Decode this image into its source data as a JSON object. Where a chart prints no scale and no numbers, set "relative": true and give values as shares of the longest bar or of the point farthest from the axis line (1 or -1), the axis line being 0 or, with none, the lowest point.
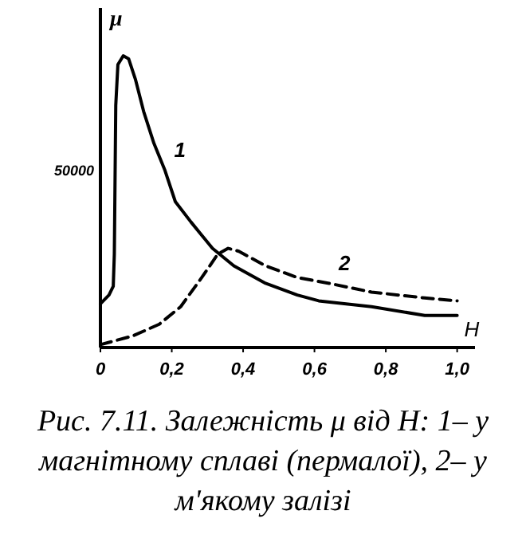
{
  "chart_data": {
    "type": "line",
    "title": "Рис. 7.11. Залежність μ від H: 1– у магнітному сплаві (пермалої), 2– у м'якому залізі",
    "xlabel": "H",
    "ylabel": "μ",
    "relative": true,
    "annotations": [
      "50000"
    ],
    "xlim": [
      0,
      1.05
    ],
    "xticks": [
      0,
      {
        "value": 0.2,
        "label": "0,2"
      },
      {
        "value": 0.4,
        "label": "0,4"
      },
      {
        "value": 0.6,
        "label": "0,6"
      },
      {
        "value": 0.8,
        "label": "0,8"
      },
      {
        "value": 1.0,
        "label": "1,0"
      }
    ],
    "grid": false,
    "legend": false,
    "series": [
      {
        "name": "1",
        "color": "#000000",
        "line_style": "solid",
        "x": [
          0,
          0.024,
          0.036,
          0.039,
          0.043,
          0.049,
          0.064,
          0.079,
          0.098,
          0.121,
          0.15,
          0.18,
          0.21,
          0.254,
          0.314,
          0.374,
          0.463,
          0.552,
          0.612,
          0.76,
          0.909,
          1.0
        ],
        "values": [
          0.15,
          0.18,
          0.21,
          0.32,
          0.83,
          0.97,
          1,
          0.99,
          0.92,
          0.81,
          0.7,
          0.61,
          0.5,
          0.43,
          0.34,
          0.28,
          0.22,
          0.18,
          0.16,
          0.14,
          0.11,
          0.11
        ]
      },
      {
        "name": "2",
        "color": "#000000",
        "line_style": "dashed",
        "x": [
          0,
          0.091,
          0.165,
          0.225,
          0.284,
          0.329,
          0.358,
          0.388,
          0.463,
          0.552,
          0.641,
          0.76,
          0.909,
          1.0
        ],
        "values": [
          0.01,
          0.04,
          0.08,
          0.14,
          0.24,
          0.32,
          0.34,
          0.33,
          0.28,
          0.24,
          0.22,
          0.19,
          0.17,
          0.16
        ]
      }
    ]
  }
}
